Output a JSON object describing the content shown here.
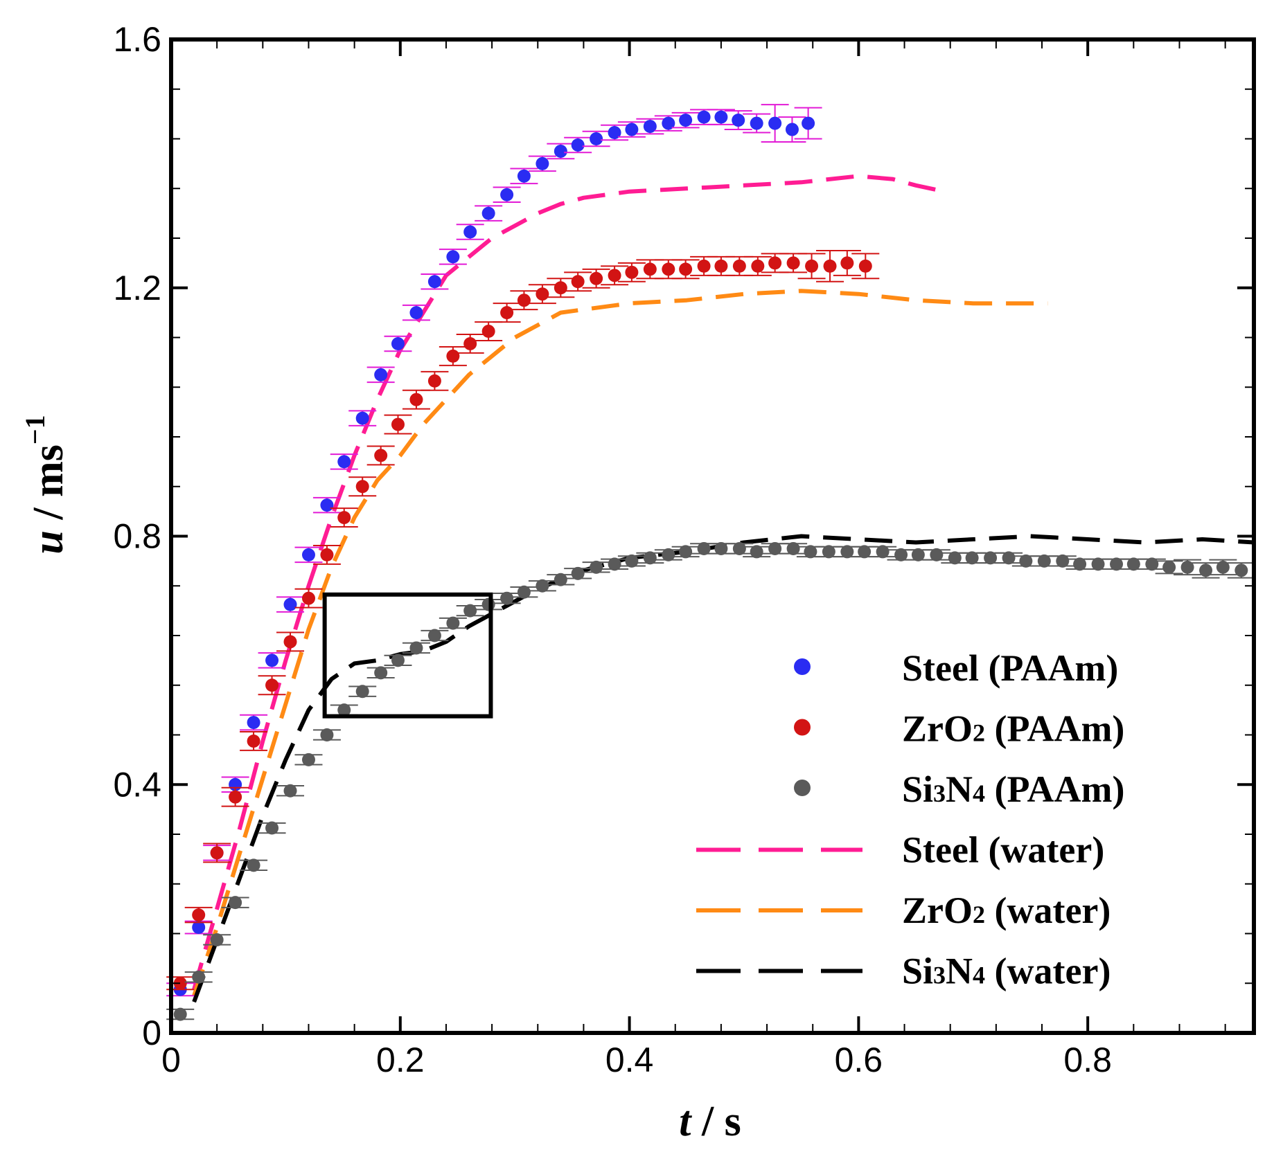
{
  "chart_data": {
    "type": "scatter",
    "title": "",
    "xlabel": {
      "var": "t",
      "unit": " / s"
    },
    "ylabel": {
      "var": "u",
      "unit": " / ms",
      "exp": "−1"
    },
    "xlim": [
      0,
      0.945
    ],
    "ylim": [
      0,
      1.6
    ],
    "xticks": [
      0,
      0.2,
      0.4,
      0.6,
      0.8
    ],
    "xtick_labels": [
      "0",
      "0.2",
      "0.4",
      "0.6",
      "0.8"
    ],
    "yticks": [
      0,
      0.4,
      0.8,
      1.2,
      1.6
    ],
    "ytick_labels": [
      "0",
      "0.4",
      "0.8",
      "1.2",
      "1.6"
    ],
    "legend_position": "bottom-right",
    "colors": {
      "steel_paam": "#2a2cf2",
      "steel_err": "#e21ad6",
      "zro2_paam": "#d21414",
      "si3n4_paam": "#5a5a5a",
      "steel_water": "#ff1c93",
      "zro2_water": "#ff8a14",
      "si3n4_water": "#000000"
    },
    "series": [
      {
        "name": "Steel (PAAm)",
        "legend": {
          "base": "Steel (PAAm)"
        },
        "kind": "markers",
        "color": "#2a2cf2",
        "error_color": "#e21ad6",
        "x": [
          0.008,
          0.024,
          0.04,
          0.056,
          0.072,
          0.088,
          0.104,
          0.12,
          0.136,
          0.151,
          0.167,
          0.183,
          0.198,
          0.214,
          0.23,
          0.246,
          0.261,
          0.277,
          0.293,
          0.308,
          0.324,
          0.34,
          0.355,
          0.371,
          0.387,
          0.402,
          0.418,
          0.434,
          0.449,
          0.465,
          0.48,
          0.495,
          0.511,
          0.527,
          0.542,
          0.556
        ],
        "y": [
          0.07,
          0.17,
          0.29,
          0.4,
          0.5,
          0.6,
          0.69,
          0.77,
          0.85,
          0.92,
          0.99,
          1.06,
          1.11,
          1.16,
          1.21,
          1.25,
          1.29,
          1.32,
          1.35,
          1.38,
          1.4,
          1.42,
          1.43,
          1.44,
          1.45,
          1.455,
          1.46,
          1.465,
          1.47,
          1.475,
          1.475,
          1.47,
          1.465,
          1.465,
          1.455,
          1.465
        ],
        "err": [
          0.01,
          0.01,
          0.012,
          0.012,
          0.012,
          0.012,
          0.012,
          0.012,
          0.012,
          0.012,
          0.012,
          0.012,
          0.012,
          0.012,
          0.012,
          0.012,
          0.012,
          0.012,
          0.012,
          0.012,
          0.012,
          0.012,
          0.012,
          0.012,
          0.012,
          0.012,
          0.012,
          0.012,
          0.012,
          0.012,
          0.012,
          0.015,
          0.015,
          0.03,
          0.02,
          0.025
        ]
      },
      {
        "name": "ZrO2 (PAAm)",
        "legend": {
          "base": "ZrO",
          "sub": "2",
          "rest": " (PAAm)"
        },
        "kind": "markers",
        "color": "#d21414",
        "error_color": "#d21414",
        "x": [
          0.008,
          0.024,
          0.04,
          0.056,
          0.072,
          0.088,
          0.104,
          0.12,
          0.136,
          0.151,
          0.167,
          0.183,
          0.198,
          0.214,
          0.23,
          0.246,
          0.261,
          0.277,
          0.293,
          0.308,
          0.324,
          0.34,
          0.355,
          0.371,
          0.387,
          0.402,
          0.418,
          0.434,
          0.449,
          0.465,
          0.48,
          0.496,
          0.512,
          0.527,
          0.543,
          0.559,
          0.575,
          0.59,
          0.606
        ],
        "y": [
          0.08,
          0.19,
          0.29,
          0.38,
          0.47,
          0.56,
          0.63,
          0.7,
          0.77,
          0.83,
          0.88,
          0.93,
          0.98,
          1.02,
          1.05,
          1.09,
          1.11,
          1.13,
          1.16,
          1.18,
          1.19,
          1.2,
          1.21,
          1.215,
          1.22,
          1.225,
          1.23,
          1.23,
          1.23,
          1.235,
          1.235,
          1.235,
          1.235,
          1.24,
          1.24,
          1.235,
          1.235,
          1.24,
          1.235
        ],
        "err": [
          0.01,
          0.012,
          0.015,
          0.015,
          0.015,
          0.015,
          0.015,
          0.015,
          0.015,
          0.015,
          0.015,
          0.015,
          0.015,
          0.015,
          0.015,
          0.015,
          0.015,
          0.015,
          0.015,
          0.015,
          0.015,
          0.015,
          0.015,
          0.015,
          0.015,
          0.015,
          0.015,
          0.015,
          0.015,
          0.015,
          0.015,
          0.015,
          0.015,
          0.015,
          0.015,
          0.02,
          0.025,
          0.02,
          0.02
        ]
      },
      {
        "name": "Si3N4 (PAAm)",
        "legend": {
          "base": "Si",
          "sub": "3",
          "mid": "N",
          "sub2": "4",
          "rest": " (PAAm)"
        },
        "kind": "markers",
        "color": "#5a5a5a",
        "error_color": "#5a5a5a",
        "x": [
          0.008,
          0.024,
          0.04,
          0.056,
          0.072,
          0.088,
          0.104,
          0.12,
          0.136,
          0.151,
          0.167,
          0.183,
          0.198,
          0.214,
          0.23,
          0.246,
          0.261,
          0.277,
          0.293,
          0.308,
          0.324,
          0.34,
          0.355,
          0.371,
          0.387,
          0.402,
          0.418,
          0.434,
          0.449,
          0.465,
          0.48,
          0.496,
          0.511,
          0.527,
          0.543,
          0.558,
          0.574,
          0.59,
          0.605,
          0.621,
          0.637,
          0.652,
          0.668,
          0.684,
          0.699,
          0.715,
          0.731,
          0.746,
          0.762,
          0.778,
          0.793,
          0.809,
          0.825,
          0.84,
          0.856,
          0.871,
          0.887,
          0.903,
          0.918,
          0.934
        ],
        "y": [
          0.03,
          0.09,
          0.15,
          0.21,
          0.27,
          0.33,
          0.39,
          0.44,
          0.48,
          0.52,
          0.55,
          0.58,
          0.6,
          0.62,
          0.64,
          0.66,
          0.68,
          0.69,
          0.7,
          0.71,
          0.72,
          0.73,
          0.74,
          0.75,
          0.755,
          0.76,
          0.765,
          0.77,
          0.775,
          0.78,
          0.78,
          0.78,
          0.775,
          0.78,
          0.78,
          0.775,
          0.775,
          0.775,
          0.775,
          0.775,
          0.77,
          0.77,
          0.77,
          0.765,
          0.765,
          0.765,
          0.765,
          0.76,
          0.76,
          0.76,
          0.755,
          0.755,
          0.755,
          0.755,
          0.755,
          0.75,
          0.75,
          0.745,
          0.75,
          0.745
        ],
        "err": [
          0.008,
          0.008,
          0.008,
          0.008,
          0.008,
          0.008,
          0.008,
          0.008,
          0.008,
          0.008,
          0.008,
          0.008,
          0.008,
          0.008,
          0.008,
          0.008,
          0.008,
          0.008,
          0.008,
          0.008,
          0.008,
          0.008,
          0.008,
          0.008,
          0.008,
          0.008,
          0.008,
          0.008,
          0.008,
          0.008,
          0.008,
          0.008,
          0.008,
          0.008,
          0.008,
          0.008,
          0.008,
          0.008,
          0.008,
          0.008,
          0.008,
          0.008,
          0.008,
          0.008,
          0.008,
          0.008,
          0.008,
          0.008,
          0.008,
          0.008,
          0.008,
          0.008,
          0.008,
          0.008,
          0.008,
          0.01,
          0.012,
          0.012,
          0.012,
          0.012
        ]
      },
      {
        "name": "Steel (water)",
        "legend": {
          "base": "Steel (water)"
        },
        "kind": "dashed-line",
        "color": "#ff1c93",
        "x": [
          0.02,
          0.04,
          0.06,
          0.08,
          0.1,
          0.12,
          0.14,
          0.16,
          0.18,
          0.2,
          0.22,
          0.24,
          0.26,
          0.28,
          0.3,
          0.32,
          0.34,
          0.36,
          0.38,
          0.4,
          0.45,
          0.5,
          0.55,
          0.6,
          0.63,
          0.65,
          0.675
        ],
        "y": [
          0.07,
          0.2,
          0.33,
          0.47,
          0.6,
          0.72,
          0.83,
          0.93,
          1.02,
          1.1,
          1.16,
          1.22,
          1.25,
          1.28,
          1.3,
          1.32,
          1.335,
          1.345,
          1.35,
          1.355,
          1.36,
          1.365,
          1.37,
          1.38,
          1.375,
          1.365,
          1.355
        ]
      },
      {
        "name": "ZrO2 (water)",
        "legend": {
          "base": "ZrO",
          "sub": "2",
          "rest": " (water)"
        },
        "kind": "dashed-line",
        "color": "#ff8a14",
        "x": [
          0.02,
          0.04,
          0.06,
          0.08,
          0.1,
          0.12,
          0.14,
          0.16,
          0.18,
          0.2,
          0.22,
          0.24,
          0.26,
          0.28,
          0.3,
          0.32,
          0.34,
          0.36,
          0.38,
          0.4,
          0.45,
          0.5,
          0.55,
          0.6,
          0.65,
          0.7,
          0.765
        ],
        "y": [
          0.06,
          0.17,
          0.29,
          0.41,
          0.53,
          0.65,
          0.75,
          0.83,
          0.89,
          0.93,
          0.98,
          1.02,
          1.06,
          1.09,
          1.12,
          1.14,
          1.16,
          1.165,
          1.17,
          1.175,
          1.18,
          1.19,
          1.195,
          1.19,
          1.18,
          1.175,
          1.175
        ]
      },
      {
        "name": "Si3N4 (water)",
        "legend": {
          "base": "Si",
          "sub": "3",
          "mid": "N",
          "sub2": "4",
          "rest": " (water)"
        },
        "kind": "dashed-line",
        "color": "#000000",
        "x": [
          0.02,
          0.04,
          0.06,
          0.08,
          0.1,
          0.12,
          0.14,
          0.16,
          0.18,
          0.2,
          0.22,
          0.24,
          0.26,
          0.28,
          0.3,
          0.32,
          0.34,
          0.36,
          0.38,
          0.4,
          0.45,
          0.5,
          0.55,
          0.6,
          0.65,
          0.7,
          0.75,
          0.8,
          0.85,
          0.9,
          0.945
        ],
        "y": [
          0.05,
          0.15,
          0.25,
          0.35,
          0.44,
          0.52,
          0.57,
          0.595,
          0.6,
          0.61,
          0.615,
          0.63,
          0.655,
          0.675,
          0.695,
          0.715,
          0.73,
          0.745,
          0.755,
          0.765,
          0.775,
          0.79,
          0.8,
          0.795,
          0.79,
          0.795,
          0.8,
          0.795,
          0.79,
          0.795,
          0.79
        ]
      }
    ],
    "annotations": [
      {
        "type": "rectangle",
        "x": [
          0.134,
          0.279
        ],
        "y": [
          0.51,
          0.706
        ]
      }
    ]
  }
}
